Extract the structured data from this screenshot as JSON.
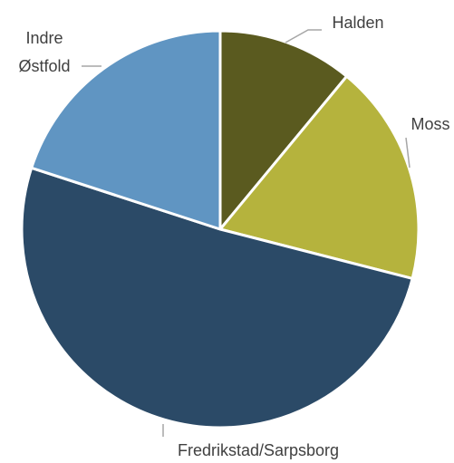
{
  "chart_data": {
    "type": "pie",
    "categories": [
      "Halden",
      "Moss",
      "Fredrikstad/Sarpsborg",
      "Indre Østfold"
    ],
    "values": [
      11,
      18,
      51,
      20
    ],
    "colors": [
      "#5a5a1f",
      "#b5b33d",
      "#2b4a67",
      "#6095c2"
    ]
  }
}
